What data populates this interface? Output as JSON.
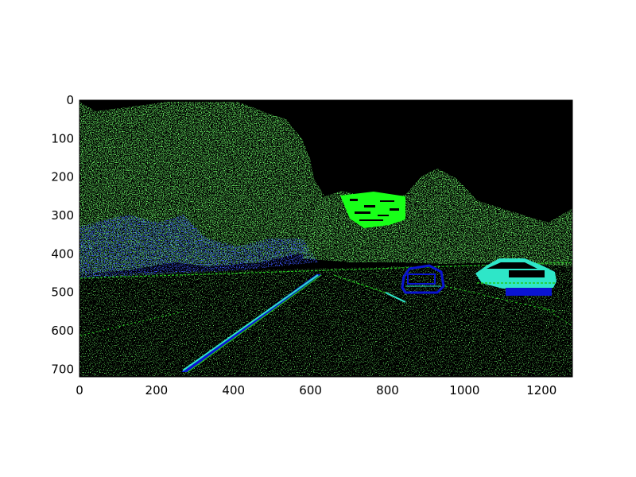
{
  "image": {
    "description_colors": {
      "background": "#000000",
      "edge_green": "#22c81e",
      "edge_blue": "#0a14d2",
      "edge_cyan": "#2ee6c8",
      "sign_green": "#18ff18",
      "frame": "#000000"
    },
    "x_ticks": [
      "0",
      "200",
      "400",
      "600",
      "800",
      "1000",
      "1200"
    ],
    "y_ticks": [
      "0",
      "100",
      "200",
      "300",
      "400",
      "500",
      "600",
      "700"
    ],
    "x_tick_values": [
      0,
      200,
      400,
      600,
      800,
      1000,
      1200
    ],
    "y_tick_values": [
      0,
      100,
      200,
      300,
      400,
      500,
      600,
      700
    ],
    "x_range": [
      0,
      1280
    ],
    "y_range": [
      0,
      720
    ]
  }
}
